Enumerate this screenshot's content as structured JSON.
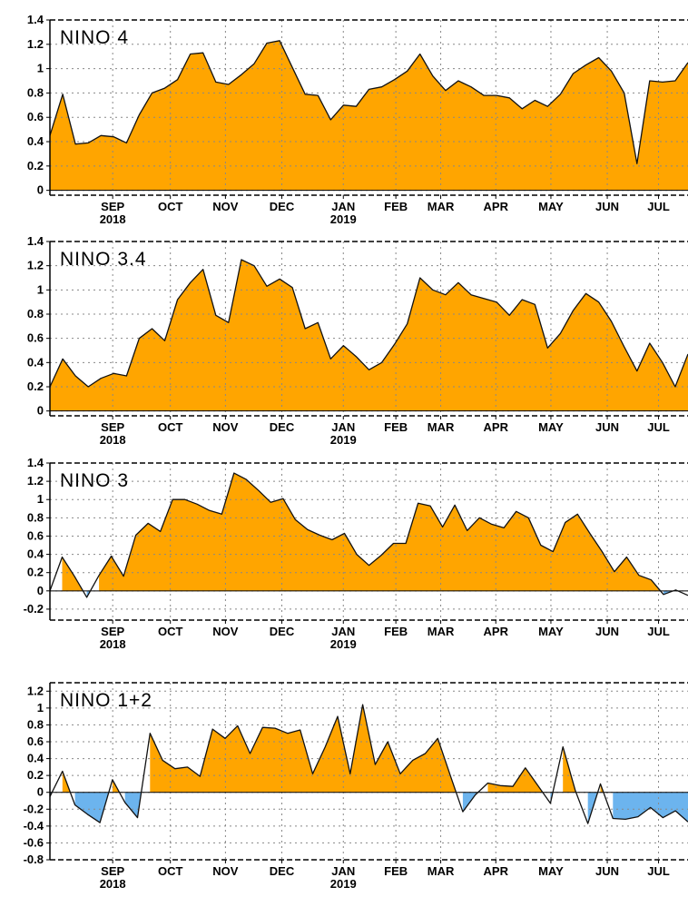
{
  "chart_data": [
    {
      "type": "area",
      "title": "NINO 4",
      "ylim": [
        -0.04,
        1.4
      ],
      "yticks": [
        0,
        0.2,
        0.4,
        0.6,
        0.8,
        1,
        1.2,
        1.4
      ],
      "ytick_labels": [
        "0",
        "0.2",
        "0.4",
        "0.6",
        "0.8",
        "1",
        "1.2",
        "1.4"
      ],
      "xlim": [
        0,
        49.8
      ],
      "xticks": [
        {
          "week": 4.9,
          "label": "SEP",
          "sublabel": "2018"
        },
        {
          "week": 9.4,
          "label": "OCT",
          "sublabel": ""
        },
        {
          "week": 13.7,
          "label": "NOV",
          "sublabel": ""
        },
        {
          "week": 18.1,
          "label": "DEC",
          "sublabel": ""
        },
        {
          "week": 22.9,
          "label": "JAN",
          "sublabel": "2019"
        },
        {
          "week": 27.0,
          "label": "FEB",
          "sublabel": ""
        },
        {
          "week": 30.5,
          "label": "MAR",
          "sublabel": ""
        },
        {
          "week": 34.8,
          "label": "APR",
          "sublabel": ""
        },
        {
          "week": 39.1,
          "label": "MAY",
          "sublabel": ""
        },
        {
          "week": 43.5,
          "label": "JUN",
          "sublabel": ""
        },
        {
          "week": 47.5,
          "label": "JUL",
          "sublabel": ""
        }
      ],
      "grid": true,
      "positive_color": "#FFA500",
      "negative_color": "#6CB4EE",
      "values": [
        0.45,
        0.79,
        0.38,
        0.39,
        0.45,
        0.44,
        0.39,
        0.62,
        0.8,
        0.84,
        0.91,
        1.12,
        1.13,
        0.89,
        0.87,
        0.95,
        1.04,
        1.21,
        1.23,
        1.01,
        0.79,
        0.78,
        0.58,
        0.7,
        0.69,
        0.83,
        0.85,
        0.91,
        0.98,
        1.12,
        0.94,
        0.82,
        0.9,
        0.85,
        0.78,
        0.78,
        0.76,
        0.67,
        0.74,
        0.69,
        0.79,
        0.96,
        1.03,
        1.09,
        0.98,
        0.8,
        0.22,
        0.9,
        0.89,
        0.9,
        1.05
      ]
    },
    {
      "type": "area",
      "title": "NINO 3.4",
      "ylim": [
        -0.04,
        1.4
      ],
      "yticks": [
        0,
        0.2,
        0.4,
        0.6,
        0.8,
        1,
        1.2,
        1.4
      ],
      "ytick_labels": [
        "0",
        "0.2",
        "0.4",
        "0.6",
        "0.8",
        "1",
        "1.2",
        "1.4"
      ],
      "xlim": [
        0,
        49.8
      ],
      "xticks": [
        {
          "week": 4.9,
          "label": "SEP",
          "sublabel": "2018"
        },
        {
          "week": 9.4,
          "label": "OCT",
          "sublabel": ""
        },
        {
          "week": 13.7,
          "label": "NOV",
          "sublabel": ""
        },
        {
          "week": 18.1,
          "label": "DEC",
          "sublabel": ""
        },
        {
          "week": 22.9,
          "label": "JAN",
          "sublabel": "2019"
        },
        {
          "week": 27.0,
          "label": "FEB",
          "sublabel": ""
        },
        {
          "week": 30.5,
          "label": "MAR",
          "sublabel": ""
        },
        {
          "week": 34.8,
          "label": "APR",
          "sublabel": ""
        },
        {
          "week": 39.1,
          "label": "MAY",
          "sublabel": ""
        },
        {
          "week": 43.5,
          "label": "JUN",
          "sublabel": ""
        },
        {
          "week": 47.5,
          "label": "JUL",
          "sublabel": ""
        }
      ],
      "grid": true,
      "positive_color": "#FFA500",
      "negative_color": "#6CB4EE",
      "values": [
        0.2,
        0.43,
        0.29,
        0.2,
        0.27,
        0.31,
        0.29,
        0.6,
        0.68,
        0.58,
        0.92,
        1.06,
        1.17,
        0.79,
        0.73,
        1.25,
        1.2,
        1.03,
        1.09,
        1.02,
        0.68,
        0.73,
        0.43,
        0.54,
        0.45,
        0.34,
        0.4,
        0.55,
        0.72,
        1.1,
        1.0,
        0.96,
        1.06,
        0.96,
        0.93,
        0.9,
        0.79,
        0.92,
        0.88,
        0.52,
        0.64,
        0.83,
        0.97,
        0.9,
        0.74,
        0.53,
        0.33,
        0.56,
        0.4,
        0.2,
        0.47
      ]
    },
    {
      "type": "area",
      "title": "NINO 3",
      "ylim": [
        -0.32,
        1.4
      ],
      "yticks": [
        -0.2,
        0,
        0.2,
        0.4,
        0.6,
        0.8,
        1,
        1.2,
        1.4
      ],
      "ytick_labels": [
        "-0.2",
        "0",
        "0.2",
        "0.4",
        "0.6",
        "0.8",
        "1",
        "1.2",
        "1.4"
      ],
      "xlim": [
        0,
        49.8
      ],
      "xticks": [
        {
          "week": 4.9,
          "label": "SEP",
          "sublabel": "2018"
        },
        {
          "week": 9.4,
          "label": "OCT",
          "sublabel": ""
        },
        {
          "week": 13.7,
          "label": "NOV",
          "sublabel": ""
        },
        {
          "week": 18.1,
          "label": "DEC",
          "sublabel": ""
        },
        {
          "week": 22.9,
          "label": "JAN",
          "sublabel": "2019"
        },
        {
          "week": 27.0,
          "label": "FEB",
          "sublabel": ""
        },
        {
          "week": 30.5,
          "label": "MAR",
          "sublabel": ""
        },
        {
          "week": 34.8,
          "label": "APR",
          "sublabel": ""
        },
        {
          "week": 39.1,
          "label": "MAY",
          "sublabel": ""
        },
        {
          "week": 43.5,
          "label": "JUN",
          "sublabel": ""
        },
        {
          "week": 47.5,
          "label": "JUL",
          "sublabel": ""
        }
      ],
      "grid": true,
      "positive_color": "#FFA500",
      "negative_color": "#6CB4EE",
      "values": [
        0.0,
        0.37,
        0.16,
        -0.07,
        0.17,
        0.38,
        0.16,
        0.61,
        0.74,
        0.65,
        1.0,
        1.0,
        0.95,
        0.88,
        0.84,
        1.29,
        1.22,
        1.1,
        0.97,
        1.01,
        0.78,
        0.67,
        0.61,
        0.56,
        0.63,
        0.4,
        0.28,
        0.39,
        0.52,
        0.52,
        0.96,
        0.93,
        0.7,
        0.94,
        0.66,
        0.8,
        0.73,
        0.69,
        0.87,
        0.8,
        0.5,
        0.43,
        0.75,
        0.84,
        0.63,
        0.43,
        0.21,
        0.37,
        0.17,
        0.12,
        -0.04,
        0.01,
        -0.05
      ]
    },
    {
      "type": "area",
      "title": "NINO 1+2",
      "ylim": [
        -0.8,
        1.3
      ],
      "yticks": [
        -0.8,
        -0.6,
        -0.4,
        -0.2,
        0,
        0.2,
        0.4,
        0.6,
        0.8,
        1,
        1.2
      ],
      "ytick_labels": [
        "-0.8",
        "-0.6",
        "-0.4",
        "-0.2",
        "0",
        "0.2",
        "0.4",
        "0.6",
        "0.8",
        "1",
        "1.2"
      ],
      "xlim": [
        0,
        49.8
      ],
      "xticks": [
        {
          "week": 4.9,
          "label": "SEP",
          "sublabel": "2018"
        },
        {
          "week": 9.4,
          "label": "OCT",
          "sublabel": ""
        },
        {
          "week": 13.7,
          "label": "NOV",
          "sublabel": ""
        },
        {
          "week": 18.1,
          "label": "DEC",
          "sublabel": ""
        },
        {
          "week": 22.9,
          "label": "JAN",
          "sublabel": "2019"
        },
        {
          "week": 27.0,
          "label": "FEB",
          "sublabel": ""
        },
        {
          "week": 30.5,
          "label": "MAR",
          "sublabel": ""
        },
        {
          "week": 34.8,
          "label": "APR",
          "sublabel": ""
        },
        {
          "week": 39.1,
          "label": "MAY",
          "sublabel": ""
        },
        {
          "week": 43.5,
          "label": "JUN",
          "sublabel": ""
        },
        {
          "week": 47.5,
          "label": "JUL",
          "sublabel": ""
        }
      ],
      "grid": true,
      "positive_color": "#FFA500",
      "negative_color": "#6CB4EE",
      "values": [
        -0.05,
        0.25,
        -0.15,
        -0.26,
        -0.36,
        0.15,
        -0.12,
        -0.3,
        0.7,
        0.38,
        0.28,
        0.3,
        0.19,
        0.75,
        0.64,
        0.79,
        0.46,
        0.77,
        0.76,
        0.7,
        0.74,
        0.22,
        0.54,
        0.9,
        0.22,
        1.04,
        0.33,
        0.6,
        0.22,
        0.38,
        0.46,
        0.64,
        0.2,
        -0.23,
        -0.03,
        0.11,
        0.08,
        0.07,
        0.29,
        0.08,
        -0.13,
        0.54,
        0.02,
        -0.37,
        0.1,
        -0.31,
        -0.32,
        -0.29,
        -0.18,
        -0.3,
        -0.22,
        -0.35
      ]
    }
  ]
}
